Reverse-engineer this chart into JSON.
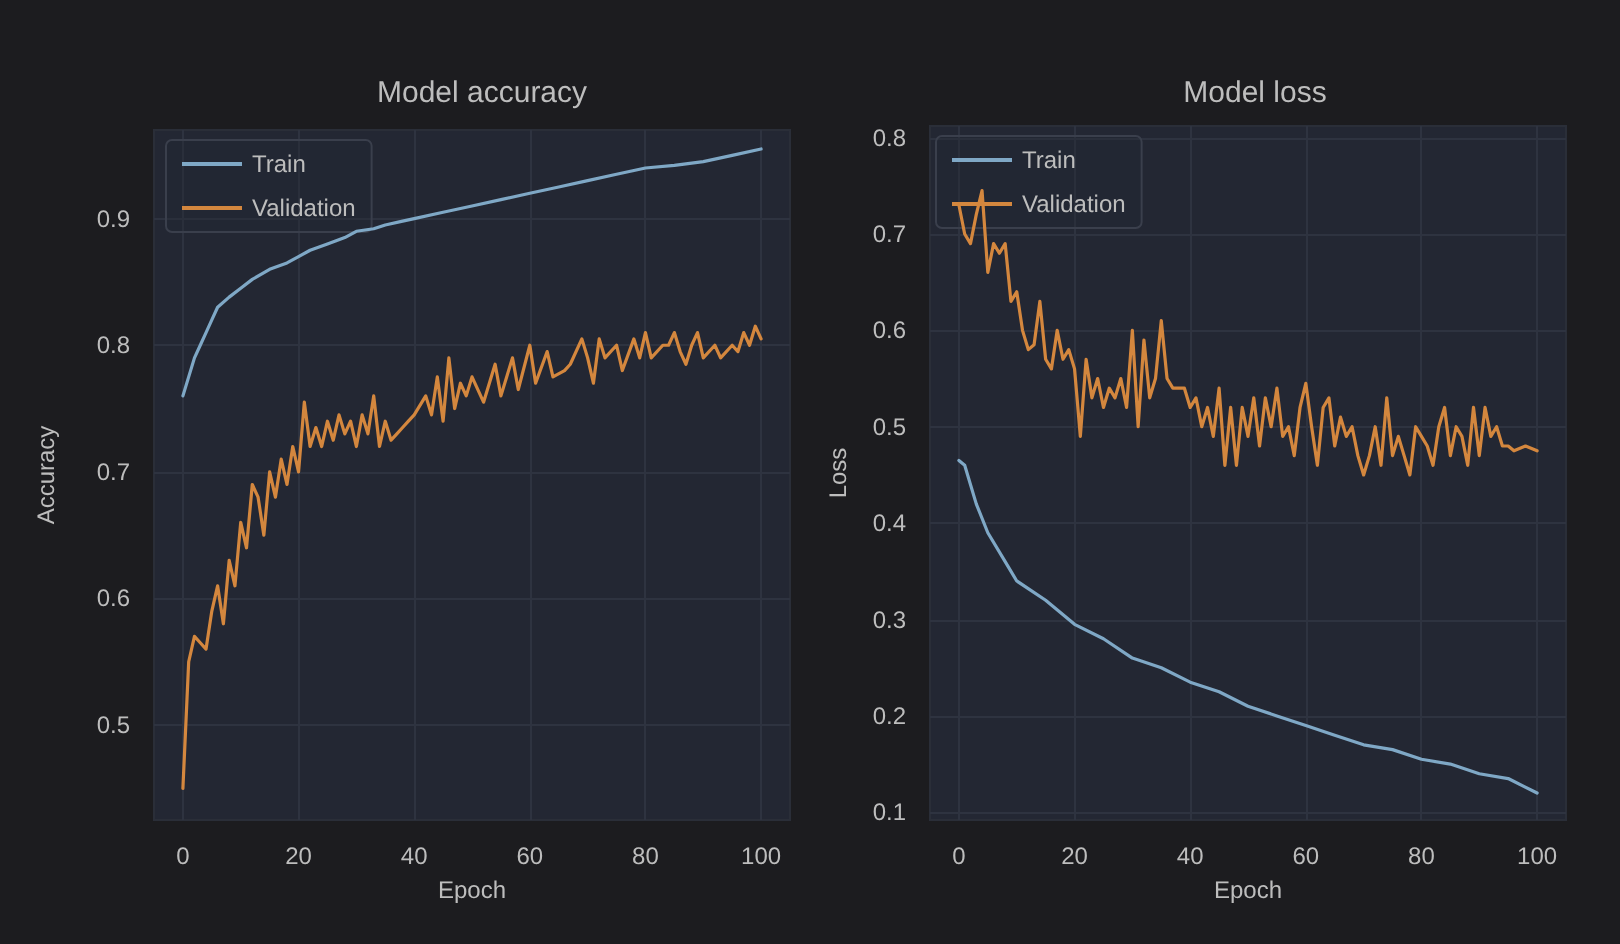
{
  "chart_data": [
    {
      "type": "line",
      "title": "Model accuracy",
      "xlabel": "Epoch",
      "ylabel": "Accuracy",
      "xlim": [
        -5,
        105
      ],
      "ylim": [
        0.425,
        0.97
      ],
      "xticks": [
        0,
        20,
        40,
        60,
        80,
        100
      ],
      "yticks": [
        0.5,
        0.6,
        0.7,
        0.8,
        0.9
      ],
      "grid": true,
      "legend": "top left",
      "series": [
        {
          "name": "Train",
          "color": "#7fa8c6",
          "x": [
            0,
            1,
            2,
            3,
            4,
            5,
            6,
            8,
            10,
            12,
            15,
            18,
            20,
            22,
            25,
            28,
            30,
            33,
            35,
            38,
            40,
            45,
            50,
            55,
            60,
            65,
            70,
            75,
            80,
            85,
            90,
            95,
            100
          ],
          "values": [
            0.76,
            0.775,
            0.79,
            0.8,
            0.81,
            0.82,
            0.83,
            0.838,
            0.845,
            0.852,
            0.86,
            0.865,
            0.87,
            0.875,
            0.88,
            0.885,
            0.89,
            0.892,
            0.895,
            0.898,
            0.9,
            0.905,
            0.91,
            0.915,
            0.92,
            0.925,
            0.93,
            0.935,
            0.94,
            0.942,
            0.945,
            0.95,
            0.955
          ]
        },
        {
          "name": "Validation",
          "color": "#d4873e",
          "x": [
            0,
            1,
            2,
            3,
            4,
            5,
            6,
            7,
            8,
            9,
            10,
            11,
            12,
            13,
            14,
            15,
            16,
            17,
            18,
            19,
            20,
            21,
            22,
            23,
            24,
            25,
            26,
            27,
            28,
            29,
            30,
            31,
            32,
            33,
            34,
            35,
            36,
            37,
            38,
            39,
            40,
            42,
            43,
            44,
            45,
            46,
            47,
            48,
            49,
            50,
            52,
            54,
            55,
            57,
            58,
            60,
            61,
            63,
            64,
            66,
            67,
            69,
            70,
            71,
            72,
            73,
            75,
            76,
            78,
            79,
            80,
            81,
            83,
            84,
            85,
            86,
            87,
            88,
            89,
            90,
            92,
            93,
            95,
            96,
            97,
            98,
            99,
            100
          ],
          "values": [
            0.45,
            0.55,
            0.57,
            0.565,
            0.56,
            0.59,
            0.61,
            0.58,
            0.63,
            0.61,
            0.66,
            0.64,
            0.69,
            0.68,
            0.65,
            0.7,
            0.68,
            0.71,
            0.69,
            0.72,
            0.7,
            0.755,
            0.72,
            0.735,
            0.72,
            0.74,
            0.725,
            0.745,
            0.73,
            0.74,
            0.72,
            0.745,
            0.73,
            0.76,
            0.72,
            0.74,
            0.725,
            0.73,
            0.735,
            0.74,
            0.745,
            0.76,
            0.745,
            0.775,
            0.74,
            0.79,
            0.75,
            0.77,
            0.76,
            0.775,
            0.755,
            0.785,
            0.76,
            0.79,
            0.765,
            0.8,
            0.77,
            0.795,
            0.775,
            0.78,
            0.785,
            0.805,
            0.79,
            0.77,
            0.805,
            0.79,
            0.8,
            0.78,
            0.805,
            0.79,
            0.81,
            0.79,
            0.8,
            0.8,
            0.81,
            0.795,
            0.785,
            0.8,
            0.81,
            0.79,
            0.8,
            0.79,
            0.8,
            0.795,
            0.81,
            0.8,
            0.815,
            0.805
          ]
        }
      ]
    },
    {
      "type": "line",
      "title": "Model loss",
      "xlabel": "Epoch",
      "ylabel": "Loss",
      "xlim": [
        -5,
        105
      ],
      "ylim": [
        0.092,
        0.812
      ],
      "xticks": [
        0,
        20,
        40,
        60,
        80,
        100
      ],
      "yticks": [
        0.1,
        0.2,
        0.3,
        0.4,
        0.5,
        0.6,
        0.7,
        0.8
      ],
      "grid": true,
      "legend": "top left",
      "series": [
        {
          "name": "Train",
          "color": "#7fa8c6",
          "x": [
            0,
            1,
            3,
            5,
            8,
            10,
            15,
            20,
            25,
            30,
            35,
            40,
            45,
            50,
            55,
            60,
            65,
            70,
            75,
            80,
            85,
            90,
            95,
            100
          ],
          "values": [
            0.465,
            0.46,
            0.42,
            0.39,
            0.36,
            0.34,
            0.32,
            0.295,
            0.28,
            0.26,
            0.25,
            0.235,
            0.225,
            0.21,
            0.2,
            0.19,
            0.18,
            0.17,
            0.165,
            0.155,
            0.15,
            0.14,
            0.135,
            0.12
          ]
        },
        {
          "name": "Validation",
          "color": "#d4873e",
          "x": [
            0,
            1,
            2,
            3,
            4,
            5,
            6,
            7,
            8,
            9,
            10,
            11,
            12,
            13,
            14,
            15,
            16,
            17,
            18,
            19,
            20,
            21,
            22,
            23,
            24,
            25,
            26,
            27,
            28,
            29,
            30,
            31,
            32,
            33,
            34,
            35,
            36,
            37,
            39,
            40,
            41,
            42,
            43,
            44,
            45,
            46,
            47,
            48,
            49,
            50,
            51,
            52,
            53,
            54,
            55,
            56,
            57,
            58,
            59,
            60,
            61,
            62,
            63,
            64,
            65,
            66,
            67,
            68,
            69,
            70,
            71,
            72,
            73,
            74,
            75,
            76,
            77,
            78,
            79,
            80,
            81,
            82,
            83,
            84,
            85,
            86,
            87,
            88,
            89,
            90,
            91,
            92,
            93,
            94,
            95,
            96,
            98,
            100
          ],
          "values": [
            0.73,
            0.7,
            0.69,
            0.72,
            0.745,
            0.66,
            0.69,
            0.68,
            0.69,
            0.63,
            0.64,
            0.6,
            0.58,
            0.585,
            0.63,
            0.57,
            0.56,
            0.6,
            0.57,
            0.58,
            0.56,
            0.49,
            0.57,
            0.53,
            0.55,
            0.52,
            0.54,
            0.53,
            0.55,
            0.52,
            0.6,
            0.5,
            0.59,
            0.53,
            0.55,
            0.61,
            0.55,
            0.54,
            0.54,
            0.52,
            0.53,
            0.5,
            0.52,
            0.49,
            0.54,
            0.46,
            0.52,
            0.46,
            0.52,
            0.49,
            0.53,
            0.48,
            0.53,
            0.5,
            0.54,
            0.49,
            0.5,
            0.47,
            0.52,
            0.545,
            0.5,
            0.46,
            0.52,
            0.53,
            0.48,
            0.51,
            0.49,
            0.5,
            0.47,
            0.45,
            0.47,
            0.5,
            0.46,
            0.53,
            0.47,
            0.49,
            0.47,
            0.45,
            0.5,
            0.49,
            0.48,
            0.46,
            0.5,
            0.52,
            0.47,
            0.5,
            0.49,
            0.46,
            0.52,
            0.47,
            0.52,
            0.49,
            0.5,
            0.48,
            0.48,
            0.475,
            0.48,
            0.475
          ]
        }
      ]
    }
  ]
}
